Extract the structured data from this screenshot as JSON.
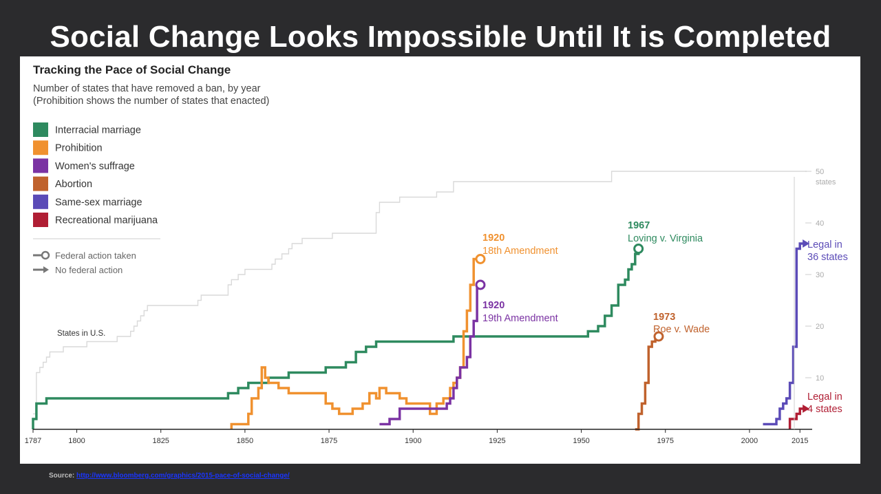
{
  "slide": {
    "title": "Social Change Looks Impossible Until It is Completed",
    "source_label": "Source:",
    "source_url": "http://www.bloomberg.com/graphics/2015-pace-of-social-change/"
  },
  "legend": {
    "items": [
      {
        "label": "Interracial marriage",
        "color": "#2e8a5f"
      },
      {
        "label": "Prohibition",
        "color": "#f0912f"
      },
      {
        "label": "Women's suffrage",
        "color": "#7b33a3"
      },
      {
        "label": "Abortion",
        "color": "#c0622d"
      },
      {
        "label": "Same-sex marriage",
        "color": "#5b4bb7"
      },
      {
        "label": "Recreational marijuana",
        "color": "#b01e34"
      }
    ],
    "federal_action": "Federal action taken",
    "no_federal_action": "No federal action"
  },
  "chart_data": {
    "type": "line",
    "step": true,
    "title": "Tracking the Pace of Social Change",
    "subtitle_line1": "Number of states that have removed a ban, by year",
    "subtitle_line2": "(Prohibition shows the number of states that enacted)",
    "x_ticks": [
      1787,
      1800,
      1825,
      1850,
      1875,
      1900,
      1925,
      1950,
      1975,
      2000,
      2015
    ],
    "xlim": [
      1787,
      2017
    ],
    "ylim": [
      0,
      50
    ],
    "y_ticks": [
      {
        "value": 10,
        "label": "10"
      },
      {
        "value": 20,
        "label": "20"
      },
      {
        "value": 30,
        "label": "30"
      },
      {
        "value": 40,
        "label": "40"
      },
      {
        "value": 50,
        "label": "50",
        "unit": "states"
      }
    ],
    "grid": false,
    "series": [
      {
        "name": "States in U.S.",
        "color": "#d9d9d9",
        "points": [
          [
            1787,
            3
          ],
          [
            1788,
            11
          ],
          [
            1789,
            12
          ],
          [
            1790,
            13
          ],
          [
            1791,
            14
          ],
          [
            1792,
            15
          ],
          [
            1796,
            16
          ],
          [
            1803,
            17
          ],
          [
            1812,
            18
          ],
          [
            1816,
            19
          ],
          [
            1817,
            20
          ],
          [
            1818,
            21
          ],
          [
            1819,
            22
          ],
          [
            1820,
            23
          ],
          [
            1821,
            24
          ],
          [
            1836,
            25
          ],
          [
            1837,
            26
          ],
          [
            1845,
            28
          ],
          [
            1846,
            29
          ],
          [
            1848,
            30
          ],
          [
            1850,
            31
          ],
          [
            1858,
            32
          ],
          [
            1859,
            33
          ],
          [
            1861,
            34
          ],
          [
            1863,
            35
          ],
          [
            1864,
            36
          ],
          [
            1867,
            37
          ],
          [
            1876,
            38
          ],
          [
            1889,
            42
          ],
          [
            1890,
            44
          ],
          [
            1896,
            45
          ],
          [
            1907,
            46
          ],
          [
            1912,
            48
          ],
          [
            1959,
            50
          ],
          [
            2017,
            50
          ]
        ],
        "annotation": "States in U.S."
      },
      {
        "name": "Interracial marriage",
        "color": "#2e8a5f",
        "points": [
          [
            1787,
            0
          ],
          [
            1787,
            2
          ],
          [
            1788,
            5
          ],
          [
            1791,
            6
          ],
          [
            1845,
            7
          ],
          [
            1848,
            8
          ],
          [
            1851,
            9
          ],
          [
            1855,
            9
          ],
          [
            1857,
            10
          ],
          [
            1863,
            11
          ],
          [
            1874,
            12
          ],
          [
            1880,
            13
          ],
          [
            1883,
            15
          ],
          [
            1886,
            16
          ],
          [
            1889,
            17
          ],
          [
            1912,
            18
          ],
          [
            1948,
            18
          ],
          [
            1952,
            19
          ],
          [
            1955,
            20
          ],
          [
            1957,
            22
          ],
          [
            1959,
            24
          ],
          [
            1961,
            28
          ],
          [
            1963,
            29
          ],
          [
            1964,
            31
          ],
          [
            1965,
            32
          ],
          [
            1966,
            34
          ],
          [
            1967,
            35
          ]
        ],
        "end": {
          "type": "circle",
          "year_label": "1967",
          "label": "Loving v. Virginia"
        }
      },
      {
        "name": "Prohibition",
        "color": "#f0912f",
        "points": [
          [
            1846,
            0
          ],
          [
            1846,
            1
          ],
          [
            1851,
            3
          ],
          [
            1852,
            6
          ],
          [
            1854,
            8
          ],
          [
            1855,
            12
          ],
          [
            1856,
            10
          ],
          [
            1857,
            9
          ],
          [
            1860,
            8
          ],
          [
            1863,
            7
          ],
          [
            1867,
            7
          ],
          [
            1872,
            7
          ],
          [
            1874,
            5
          ],
          [
            1876,
            4
          ],
          [
            1878,
            3
          ],
          [
            1882,
            4
          ],
          [
            1885,
            5
          ],
          [
            1887,
            7
          ],
          [
            1889,
            6
          ],
          [
            1890,
            8
          ],
          [
            1892,
            7
          ],
          [
            1896,
            6
          ],
          [
            1898,
            5
          ],
          [
            1905,
            3
          ],
          [
            1907,
            5
          ],
          [
            1909,
            6
          ],
          [
            1911,
            8
          ],
          [
            1912,
            9
          ],
          [
            1913,
            10
          ],
          [
            1914,
            12
          ],
          [
            1915,
            19
          ],
          [
            1916,
            23
          ],
          [
            1917,
            28
          ],
          [
            1918,
            33
          ],
          [
            1919,
            33
          ],
          [
            1920,
            33
          ]
        ],
        "end": {
          "type": "circle",
          "year_label": "1920",
          "label": "18th Amendment"
        }
      },
      {
        "name": "Women's suffrage",
        "color": "#7b33a3",
        "points": [
          [
            1890,
            1
          ],
          [
            1893,
            2
          ],
          [
            1896,
            4
          ],
          [
            1900,
            4
          ],
          [
            1910,
            5
          ],
          [
            1911,
            6
          ],
          [
            1912,
            8
          ],
          [
            1913,
            10
          ],
          [
            1914,
            12
          ],
          [
            1915,
            12
          ],
          [
            1916,
            14
          ],
          [
            1917,
            18
          ],
          [
            1918,
            21
          ],
          [
            1919,
            28
          ],
          [
            1920,
            28
          ]
        ],
        "end": {
          "type": "circle",
          "year_label": "1920",
          "label": "19th Amendment"
        }
      },
      {
        "name": "Abortion",
        "color": "#c0622d",
        "points": [
          [
            1966,
            0
          ],
          [
            1967,
            3
          ],
          [
            1968,
            5
          ],
          [
            1969,
            9
          ],
          [
            1970,
            16
          ],
          [
            1971,
            17
          ],
          [
            1972,
            18
          ],
          [
            1973,
            18
          ]
        ],
        "end": {
          "type": "circle",
          "year_label": "1973",
          "label": "Roe v. Wade"
        }
      },
      {
        "name": "Same-sex marriage",
        "color": "#5b4bb7",
        "points": [
          [
            2004,
            1
          ],
          [
            2008,
            2
          ],
          [
            2009,
            4
          ],
          [
            2010,
            5
          ],
          [
            2011,
            6
          ],
          [
            2012,
            9
          ],
          [
            2013,
            16
          ],
          [
            2014,
            35
          ],
          [
            2015,
            36
          ],
          [
            2016,
            36
          ]
        ],
        "end": {
          "type": "arrow",
          "label_line1": "Legal in",
          "label_line2": "36 states"
        }
      },
      {
        "name": "Recreational marijuana",
        "color": "#b01e34",
        "points": [
          [
            2012,
            0
          ],
          [
            2012,
            2
          ],
          [
            2014,
            3
          ],
          [
            2015,
            4
          ],
          [
            2016,
            4
          ]
        ],
        "end": {
          "type": "arrow",
          "label_line1": "Legal in",
          "label_line2": "4 states"
        }
      }
    ]
  }
}
